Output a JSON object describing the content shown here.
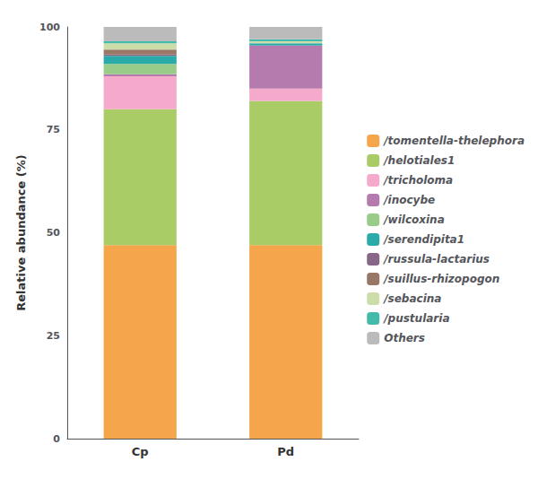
{
  "chart_data": {
    "type": "bar",
    "stacked": true,
    "ylabel": "Relative abundance (%)",
    "categories": [
      "Cp",
      "Pd"
    ],
    "series": [
      {
        "name": "/tomentella-thelephora",
        "color": "#F5A54A",
        "values": [
          47.0,
          47.0
        ]
      },
      {
        "name": "/helotiales1",
        "color": "#AACC66",
        "values": [
          33.0,
          35.0
        ]
      },
      {
        "name": "/tricholoma",
        "color": "#F5AACC",
        "values": [
          8.0,
          3.0
        ]
      },
      {
        "name": "/inocybe",
        "color": "#B57BAE",
        "values": [
          0.5,
          10.5
        ]
      },
      {
        "name": "/wilcoxina",
        "color": "#99CC88",
        "values": [
          2.5,
          0.0
        ]
      },
      {
        "name": "/serendipita1",
        "color": "#2BAAAA",
        "values": [
          2.0,
          0.5
        ]
      },
      {
        "name": "/russula-lactarius",
        "color": "#886688",
        "values": [
          0.3,
          0.0
        ]
      },
      {
        "name": "/suillus-rhizopogon",
        "color": "#997766",
        "values": [
          1.2,
          0.0
        ]
      },
      {
        "name": "/sebacina",
        "color": "#CCDDAA",
        "values": [
          1.5,
          0.5
        ]
      },
      {
        "name": "/pustularia",
        "color": "#44BBAA",
        "values": [
          0.5,
          0.5
        ]
      },
      {
        "name": "Others",
        "color": "#BBBBBB",
        "values": [
          3.5,
          3.0
        ]
      }
    ],
    "ylim": [
      0,
      100
    ],
    "yticks": [
      0,
      25,
      50,
      75,
      100
    ],
    "grid": false,
    "legend": "right"
  }
}
